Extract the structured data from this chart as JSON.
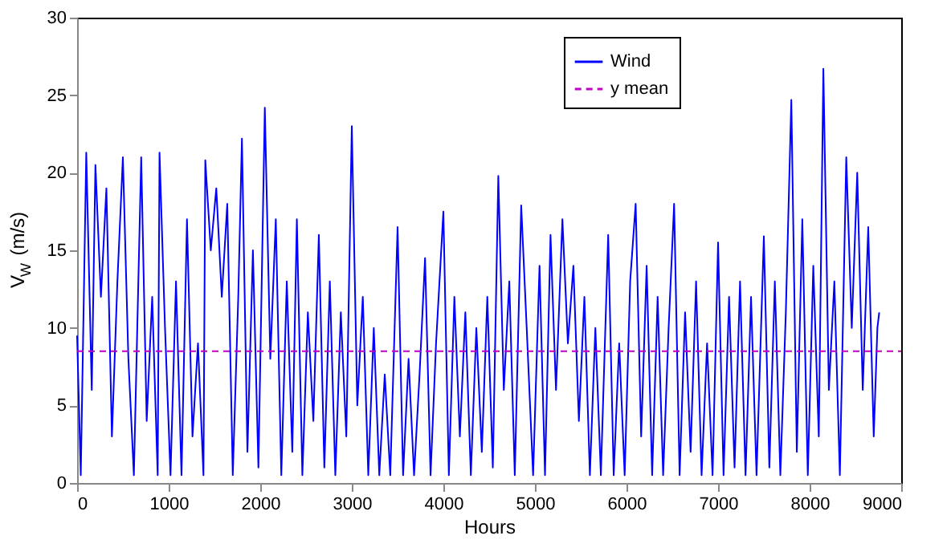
{
  "chart_data": {
    "type": "line",
    "xlabel": "Hours",
    "ylabel": "V$_{W}$ (m/s)",
    "xlim": [
      0,
      9000
    ],
    "xticks": [
      0,
      1000,
      2000,
      3000,
      4000,
      5000,
      6000,
      7000,
      8000,
      9000
    ],
    "ylim": [
      0,
      30
    ],
    "yticks": [
      0,
      5,
      10,
      15,
      20,
      25,
      30
    ],
    "grid": false,
    "legend": "top right",
    "series": [
      {
        "name": "Wind",
        "color": "#0000ff",
        "line_style": "solid",
        "x": [
          0,
          40,
          100,
          160,
          200,
          260,
          320,
          380,
          440,
          500,
          560,
          620,
          700,
          760,
          820,
          880,
          900,
          960,
          1020,
          1080,
          1140,
          1200,
          1260,
          1320,
          1380,
          1400,
          1460,
          1520,
          1580,
          1640,
          1700,
          1760,
          1800,
          1860,
          1920,
          1980,
          2050,
          2110,
          2170,
          2230,
          2290,
          2350,
          2400,
          2460,
          2520,
          2580,
          2640,
          2700,
          2760,
          2820,
          2880,
          2940,
          3000,
          3060,
          3120,
          3180,
          3240,
          3300,
          3360,
          3420,
          3500,
          3560,
          3620,
          3680,
          3740,
          3800,
          3860,
          3920,
          4000,
          4060,
          4120,
          4180,
          4240,
          4300,
          4360,
          4420,
          4480,
          4540,
          4600,
          4660,
          4720,
          4780,
          4850,
          4910,
          4980,
          5050,
          5110,
          5170,
          5230,
          5300,
          5360,
          5420,
          5480,
          5540,
          5600,
          5660,
          5720,
          5800,
          5860,
          5920,
          5980,
          6040,
          6100,
          6160,
          6220,
          6280,
          6340,
          6400,
          6460,
          6520,
          6580,
          6640,
          6700,
          6760,
          6820,
          6880,
          6940,
          7000,
          7060,
          7120,
          7180,
          7240,
          7300,
          7360,
          7420,
          7500,
          7560,
          7620,
          7680,
          7740,
          7800,
          7860,
          7920,
          7980,
          8040,
          8100,
          8150,
          8210,
          8270,
          8330,
          8400,
          8460,
          8520,
          8580,
          8640,
          8700,
          8740,
          8760
        ],
        "values": [
          9.5,
          0.5,
          21.3,
          6,
          20.5,
          12,
          19,
          3,
          13,
          21,
          8,
          0.5,
          21,
          4,
          12,
          0.5,
          21.3,
          10,
          0.5,
          13,
          0.5,
          17,
          3,
          9,
          0.5,
          20.8,
          15,
          19,
          12,
          18,
          0.5,
          12,
          22.2,
          2,
          15,
          1,
          24.2,
          8,
          17,
          0.5,
          13,
          2,
          17,
          0.5,
          11,
          4,
          16,
          1,
          13,
          0.5,
          11,
          3,
          23,
          5,
          12,
          0.5,
          10,
          0.5,
          7,
          0.5,
          16.5,
          0.5,
          8,
          0.5,
          7,
          14.5,
          0.5,
          9,
          17.5,
          0.5,
          12,
          3,
          11,
          0.5,
          10,
          2,
          12,
          1,
          19.8,
          6,
          13,
          0.5,
          17.9,
          10,
          0.5,
          14,
          0.5,
          16,
          6,
          17,
          9,
          14,
          4,
          12,
          0.5,
          10,
          0.5,
          16,
          0.5,
          9,
          0.5,
          13,
          18,
          3,
          14,
          0.5,
          12,
          0.5,
          10,
          18,
          0.5,
          11,
          2,
          13,
          0.5,
          9,
          0.5,
          15.5,
          0.5,
          12,
          1,
          13,
          0.5,
          12,
          0.5,
          15.9,
          1,
          13,
          0.5,
          11,
          24.7,
          2,
          17,
          0.5,
          14,
          3,
          26.7,
          6,
          13,
          0.5,
          21,
          10,
          20,
          6,
          16.5,
          3,
          10,
          11
        ]
      },
      {
        "name": "y mean",
        "color": "#bf00bf",
        "line_style": "dashed",
        "x": [
          0,
          9000
        ],
        "values": [
          8.5,
          8.5
        ]
      }
    ]
  }
}
